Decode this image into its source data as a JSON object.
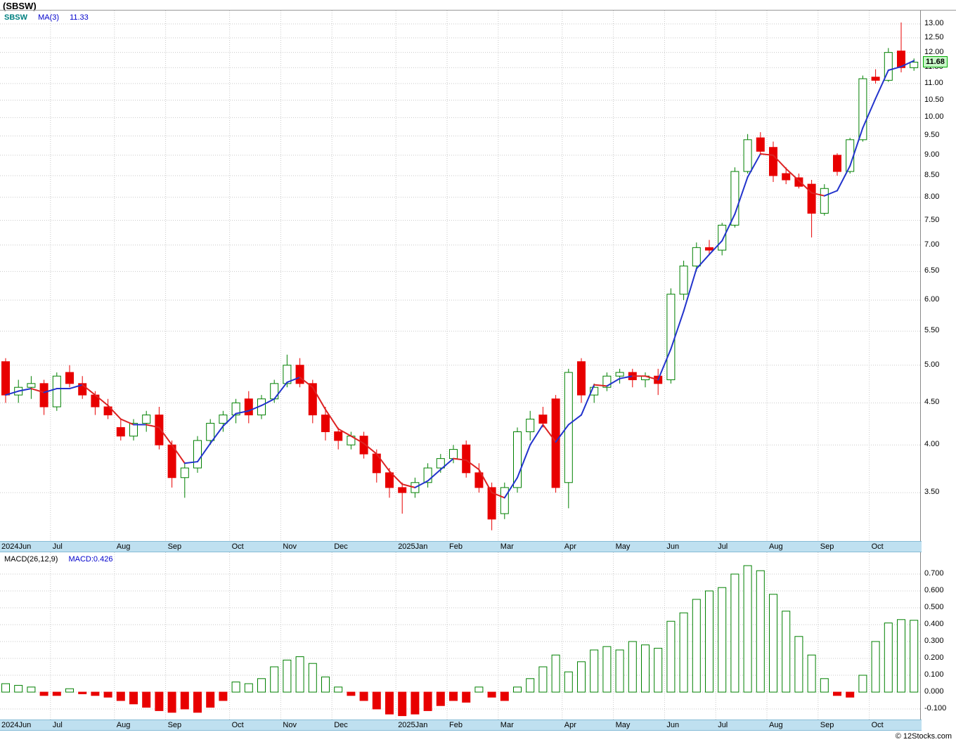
{
  "title": "(SBSW)",
  "main_chart": {
    "legend": {
      "symbol": "SBSW",
      "ma_label": "MA(3)",
      "ma_value": "11.33"
    },
    "price_badge": "11.68"
  },
  "macd_chart": {
    "legend_label": "MACD(26,12,9)",
    "legend_value": "MACD:0.426"
  },
  "footer": "© 12Stocks.com",
  "colors": {
    "candle_up": "#008000",
    "candle_down": "#e80000",
    "ma_up": "#2233cc",
    "ma_down": "#dd2222",
    "grid": "#c9c9c9",
    "strip_bg": "#bfe0f0",
    "badge_bg": "#c8f7c8",
    "badge_border": "#00aa00",
    "legend_symbol": "#008080",
    "legend_blue": "#0000cc"
  },
  "chart_data": [
    {
      "type": "candlestick",
      "symbol": "SBSW",
      "interval": "weekly",
      "scale": "log",
      "ylim": [
        3.5,
        13.0
      ],
      "y_ticks": [
        13.0,
        12.5,
        12.0,
        11.5,
        11.0,
        10.5,
        10.0,
        9.5,
        9.0,
        8.5,
        8.0,
        7.5,
        7.0,
        6.5,
        6.0,
        5.5,
        5.0,
        4.5,
        4.0,
        3.5
      ],
      "x_months": [
        {
          "label": "2024Jun",
          "week": 0
        },
        {
          "label": "Jul",
          "week": 4
        },
        {
          "label": "Aug",
          "week": 9
        },
        {
          "label": "Sep",
          "week": 13
        },
        {
          "label": "Oct",
          "week": 18
        },
        {
          "label": "Nov",
          "week": 22
        },
        {
          "label": "Dec",
          "week": 26
        },
        {
          "label": "2025Jan",
          "week": 31
        },
        {
          "label": "Feb",
          "week": 35
        },
        {
          "label": "Mar",
          "week": 39
        },
        {
          "label": "Apr",
          "week": 44
        },
        {
          "label": "May",
          "week": 48
        },
        {
          "label": "Jun",
          "week": 52
        },
        {
          "label": "Jul",
          "week": 56
        },
        {
          "label": "Aug",
          "week": 60
        },
        {
          "label": "Sep",
          "week": 64
        },
        {
          "label": "Oct",
          "week": 68
        }
      ],
      "open": [
        5.05,
        4.6,
        4.7,
        4.75,
        4.45,
        4.9,
        4.75,
        4.6,
        4.45,
        4.2,
        4.1,
        4.25,
        4.35,
        4.0,
        3.65,
        3.75,
        4.05,
        4.25,
        4.35,
        4.55,
        4.35,
        4.55,
        4.75,
        5.0,
        4.75,
        4.35,
        4.15,
        4.0,
        4.1,
        3.9,
        3.7,
        3.55,
        3.5,
        3.6,
        3.75,
        3.85,
        4.0,
        3.7,
        3.55,
        3.3,
        3.55,
        4.15,
        4.35,
        4.55,
        3.6,
        5.05,
        4.6,
        4.7,
        4.85,
        4.9,
        4.8,
        4.85,
        4.8,
        6.1,
        6.6,
        6.95,
        6.9,
        7.4,
        8.6,
        9.45,
        9.2,
        8.55,
        8.45,
        8.3,
        7.65,
        9.0,
        8.6,
        9.4,
        11.2,
        11.1,
        12.05,
        11.5
      ],
      "high": [
        5.1,
        4.8,
        4.85,
        4.8,
        4.9,
        5.0,
        4.85,
        4.65,
        4.55,
        4.3,
        4.3,
        4.4,
        4.45,
        4.05,
        3.8,
        4.1,
        4.3,
        4.4,
        4.55,
        4.65,
        4.6,
        4.8,
        5.15,
        5.1,
        4.8,
        4.45,
        4.2,
        4.15,
        4.15,
        3.95,
        3.75,
        3.6,
        3.65,
        3.8,
        3.9,
        4.0,
        4.05,
        3.8,
        3.6,
        3.6,
        4.2,
        4.4,
        4.45,
        4.6,
        4.95,
        5.1,
        4.75,
        4.9,
        4.95,
        4.95,
        4.9,
        4.95,
        6.2,
        6.7,
        7.05,
        7.1,
        7.45,
        8.7,
        9.55,
        9.6,
        9.35,
        8.7,
        8.55,
        8.4,
        8.3,
        9.05,
        9.45,
        11.25,
        11.45,
        12.15,
        13.05,
        11.8
      ],
      "low": [
        4.5,
        4.5,
        4.55,
        4.35,
        4.4,
        4.7,
        4.55,
        4.35,
        4.3,
        4.05,
        4.05,
        4.15,
        3.95,
        3.55,
        3.45,
        3.7,
        4.0,
        4.15,
        4.25,
        4.25,
        4.3,
        4.5,
        4.7,
        4.7,
        4.25,
        4.05,
        3.95,
        3.95,
        3.85,
        3.6,
        3.45,
        3.3,
        3.45,
        3.55,
        3.7,
        3.8,
        3.65,
        3.5,
        3.15,
        3.25,
        3.5,
        4.05,
        4.2,
        3.5,
        3.35,
        4.5,
        4.5,
        4.65,
        4.75,
        4.7,
        4.7,
        4.6,
        4.75,
        6.0,
        6.5,
        6.8,
        6.8,
        7.35,
        8.55,
        9.0,
        8.35,
        8.3,
        8.2,
        7.15,
        7.6,
        8.5,
        8.55,
        9.35,
        11.0,
        11.05,
        11.35,
        11.4
      ],
      "close": [
        4.6,
        4.7,
        4.75,
        4.45,
        4.85,
        4.75,
        4.6,
        4.45,
        4.35,
        4.1,
        4.25,
        4.35,
        4.0,
        3.65,
        3.75,
        4.05,
        4.25,
        4.35,
        4.5,
        4.35,
        4.55,
        4.75,
        5.0,
        4.75,
        4.35,
        4.15,
        4.05,
        4.1,
        3.9,
        3.7,
        3.55,
        3.5,
        3.6,
        3.75,
        3.85,
        3.95,
        3.7,
        3.55,
        3.25,
        3.55,
        4.15,
        4.3,
        4.25,
        3.55,
        4.9,
        4.6,
        4.7,
        4.85,
        4.9,
        4.8,
        4.85,
        4.75,
        6.1,
        6.6,
        6.95,
        6.9,
        7.4,
        8.6,
        9.4,
        9.1,
        8.5,
        8.4,
        8.25,
        7.65,
        8.2,
        8.6,
        9.4,
        11.15,
        11.1,
        12.0,
        11.5,
        11.68
      ],
      "ma3_last": 11.33,
      "last_price": 11.68
    },
    {
      "type": "bar",
      "name": "MACD(26,12,9) histogram",
      "ylim": [
        -0.1,
        0.7
      ],
      "y_ticks": [
        0.7,
        0.6,
        0.5,
        0.4,
        0.3,
        0.2,
        0.1,
        0.0,
        -0.1
      ],
      "values": [
        0.05,
        0.04,
        0.03,
        -0.02,
        -0.02,
        0.02,
        -0.01,
        -0.02,
        -0.03,
        -0.05,
        -0.07,
        -0.09,
        -0.11,
        -0.12,
        -0.1,
        -0.12,
        -0.09,
        -0.05,
        0.06,
        0.05,
        0.08,
        0.15,
        0.19,
        0.21,
        0.17,
        0.09,
        0.03,
        -0.02,
        -0.05,
        -0.1,
        -0.13,
        -0.14,
        -0.13,
        -0.11,
        -0.08,
        -0.05,
        -0.06,
        0.03,
        -0.03,
        -0.05,
        0.03,
        0.08,
        0.15,
        0.22,
        0.12,
        0.18,
        0.25,
        0.27,
        0.25,
        0.3,
        0.28,
        0.26,
        0.42,
        0.47,
        0.55,
        0.6,
        0.62,
        0.7,
        0.75,
        0.72,
        0.58,
        0.48,
        0.33,
        0.22,
        0.08,
        -0.02,
        -0.03,
        0.1,
        0.3,
        0.41,
        0.43,
        0.426
      ],
      "last_value": 0.426
    }
  ]
}
